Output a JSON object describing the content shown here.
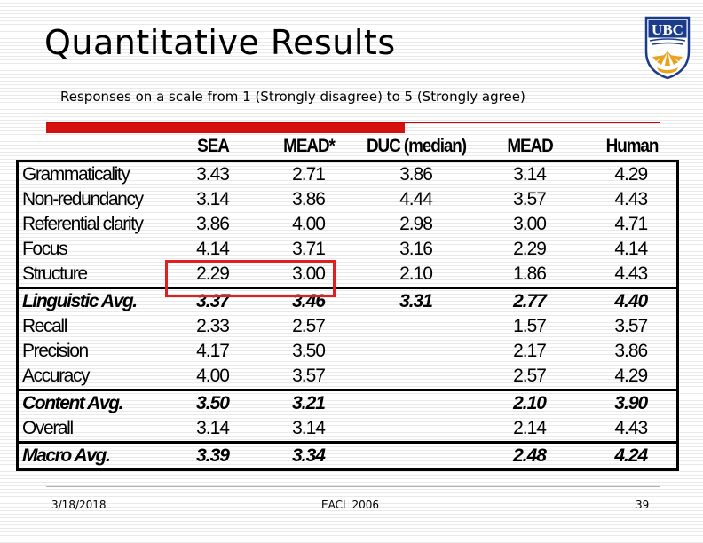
{
  "title": "Quantitative Results",
  "subtitle": "Responses on a scale from 1 (Strongly disagree) to 5 (Strongly agree)",
  "logo": {
    "text": "UBC",
    "icon": "ubc-crest-icon",
    "colors": {
      "blue": "#1b3c8c",
      "gold": "#e8a21e"
    }
  },
  "table": {
    "columns": [
      "",
      "SEA",
      "MEAD*",
      "DUC (median)",
      "MEAD",
      "Human"
    ],
    "rows": [
      {
        "label": "Grammaticality",
        "values": [
          "3.43",
          "2.71",
          "3.86",
          "3.14",
          "4.29"
        ]
      },
      {
        "label": "Non-redundancy",
        "values": [
          "3.14",
          "3.86",
          "4.44",
          "3.57",
          "4.43"
        ]
      },
      {
        "label": "Referential clarity",
        "values": [
          "3.86",
          "4.00",
          "2.98",
          "3.00",
          "4.71"
        ]
      },
      {
        "label": "Focus",
        "values": [
          "4.14",
          "3.71",
          "3.16",
          "2.29",
          "4.14"
        ]
      },
      {
        "label": "Structure",
        "values": [
          "2.29",
          "3.00",
          "2.10",
          "1.86",
          "4.43"
        ]
      },
      {
        "label": "Linguistic Avg.",
        "values": [
          "3.37",
          "3.46",
          "3.31",
          "2.77",
          "4.40"
        ]
      },
      {
        "label": "Recall",
        "values": [
          "2.33",
          "2.57",
          "",
          "1.57",
          "3.57"
        ]
      },
      {
        "label": "Precision",
        "values": [
          "4.17",
          "3.50",
          "",
          "2.17",
          "3.86"
        ]
      },
      {
        "label": "Accuracy",
        "values": [
          "4.00",
          "3.57",
          "",
          "2.57",
          "4.29"
        ]
      },
      {
        "label": "Content Avg.",
        "values": [
          "3.50",
          "3.21",
          "",
          "2.10",
          "3.90"
        ]
      },
      {
        "label": "Overall",
        "values": [
          "3.14",
          "3.14",
          "",
          "2.14",
          "4.43"
        ]
      },
      {
        "label": "Macro Avg.",
        "values": [
          "3.39",
          "3.34",
          "",
          "2.48",
          "4.24"
        ]
      }
    ]
  },
  "footer": {
    "date": "3/18/2018",
    "conference": "EACL 2006",
    "page": "39"
  },
  "colors": {
    "accent_red": "#d51010",
    "highlight_red": "#e02020"
  }
}
